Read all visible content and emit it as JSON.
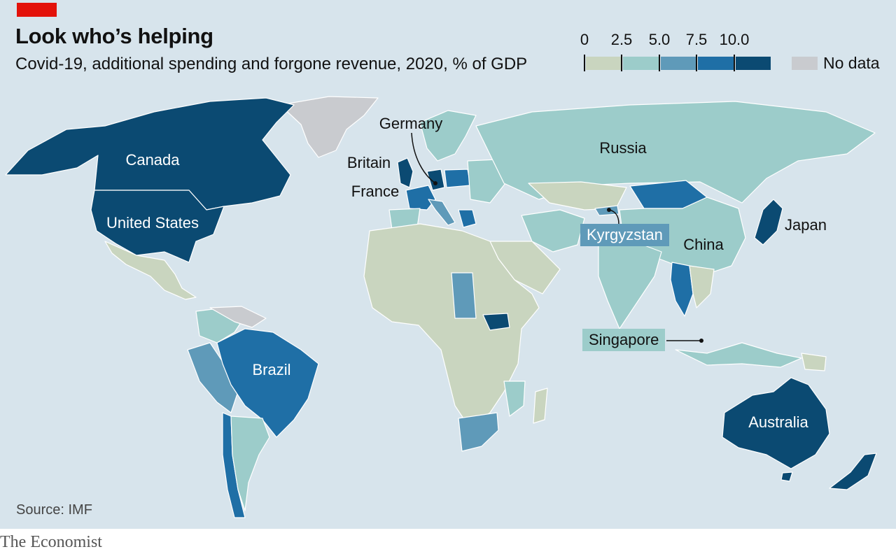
{
  "header": {
    "title": "Look who’s helping",
    "subtitle": "Covid-19, additional spending and forgone revenue, 2020, % of GDP"
  },
  "legend": {
    "ticks": [
      "0",
      "2.5",
      "5.0",
      "7.5",
      "10.0"
    ],
    "bin_colors": [
      "#c9d5bf",
      "#9cccca",
      "#5f9ab9",
      "#1f6fa6",
      "#0b4a72"
    ],
    "no_data_label": "No data",
    "no_data_color": "#c9cbcf"
  },
  "labels": {
    "canada": "Canada",
    "united_states": "United States",
    "brazil": "Brazil",
    "australia": "Australia",
    "germany": "Germany",
    "britain": "Britain",
    "france": "France",
    "russia": "Russia",
    "japan": "Japan",
    "china": "China",
    "kyrgyzstan": "Kyrgyzstan",
    "singapore": "Singapore"
  },
  "footer": {
    "source": "Source: IMF",
    "brand": "The Economist"
  }
}
